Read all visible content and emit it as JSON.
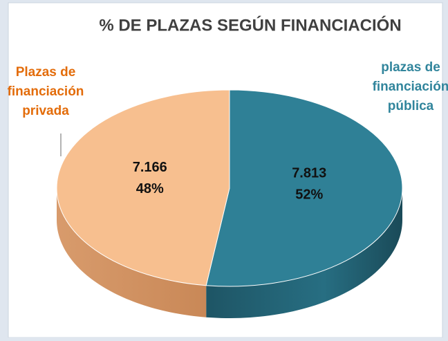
{
  "chart_data": {
    "type": "pie3d",
    "title": "% DE PLAZAS SEGÚN FINANCIACIÓN",
    "categories": [
      [
        "plazas de",
        "financiación",
        "pública"
      ],
      [
        "Plazas de",
        "financiación",
        "privada"
      ]
    ],
    "values": [
      7813,
      7166
    ],
    "value_labels": [
      "7.813",
      "7.166"
    ],
    "percentages": [
      52,
      48
    ],
    "percentage_labels": [
      "52%",
      "48%"
    ],
    "colors": [
      "#2f8096",
      "#f7bf8f"
    ],
    "label_colors": [
      "#31859c",
      "#e36c0a"
    ]
  }
}
